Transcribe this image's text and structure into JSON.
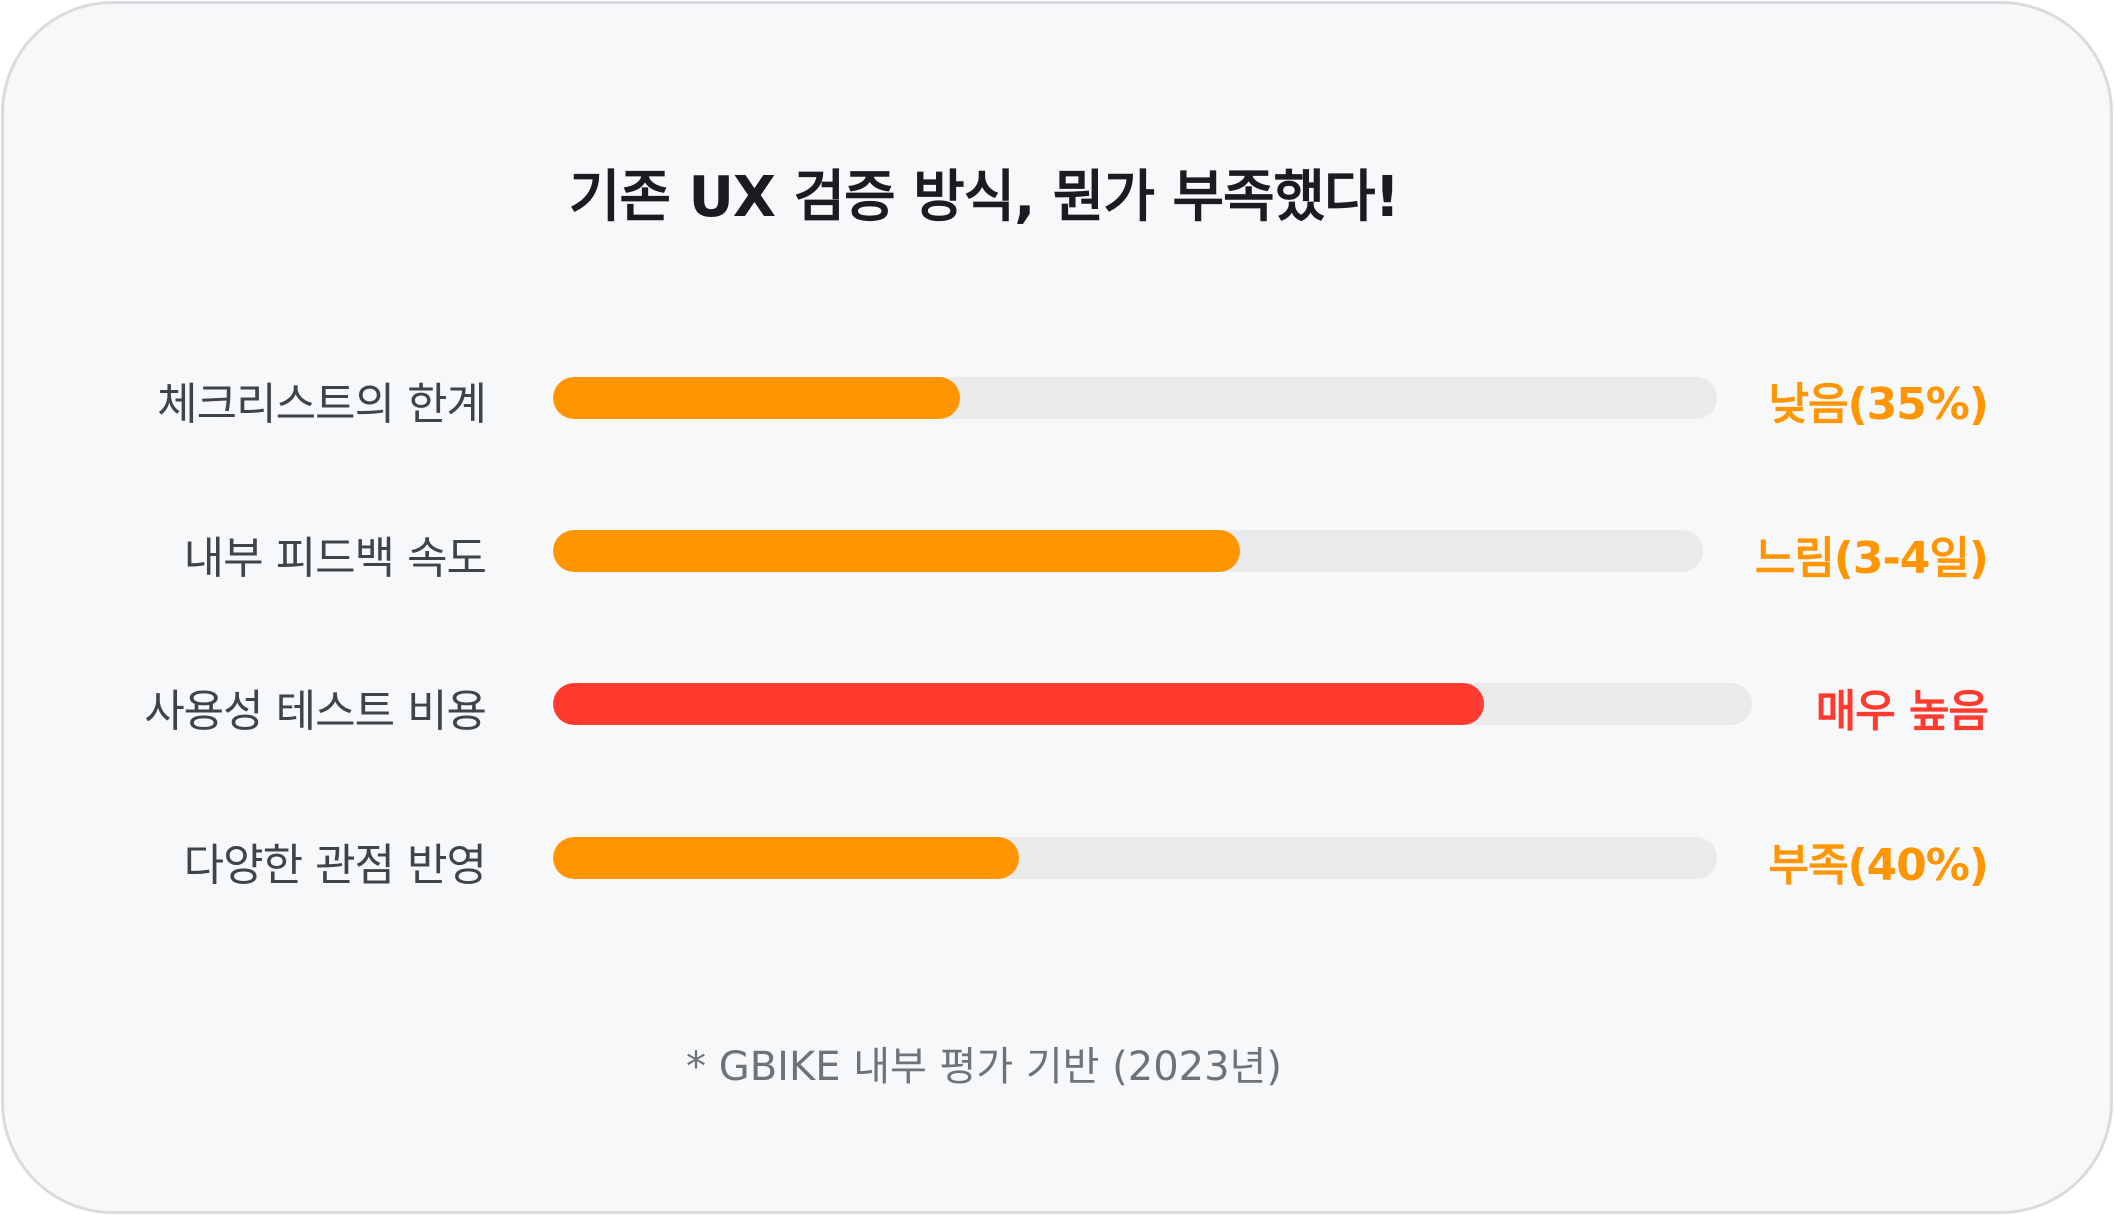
{
  "title": "기존 UX 검증 방식, 뭔가 부족했다!",
  "footnote": "* GBIKE 내부 평가 기반 (2023년)",
  "colors": {
    "orange": "#ff9500",
    "red": "#ff3b30",
    "track": "#e8eaec"
  },
  "chart_data": {
    "type": "bar",
    "orientation": "horizontal",
    "categories": [
      "체크리스트의 한계",
      "내부 피드백 속도",
      "사용성 테스트 비용",
      "다양한 관점 반영"
    ],
    "values": [
      35,
      59,
      80,
      40
    ],
    "value_labels": [
      "낮음(35%)",
      "느림(3-4일)",
      "매우 높음",
      "부족(40%)"
    ],
    "bar_colors": [
      "#ff9500",
      "#ff9500",
      "#ff3b30",
      "#ff9500"
    ],
    "xlim": [
      0,
      100
    ],
    "grid": false
  }
}
